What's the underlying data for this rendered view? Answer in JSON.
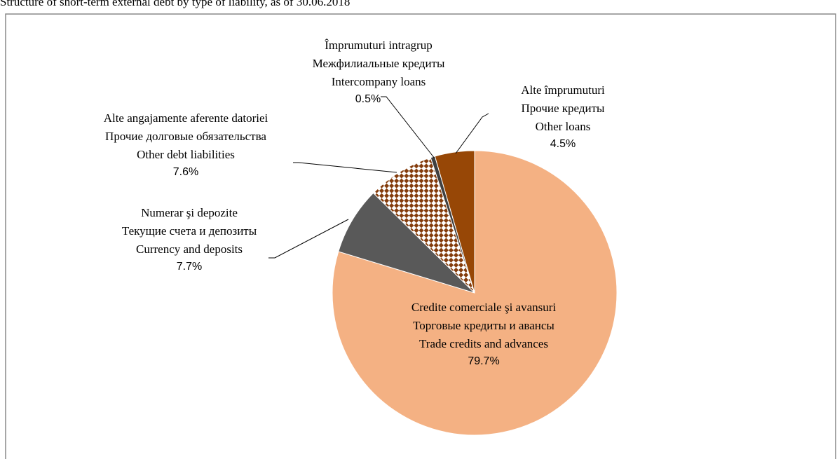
{
  "chart_data": {
    "type": "pie",
    "title": "Structure of short-term external debt by type of liability, as of 30.06.2018",
    "labels": [
      [
        "Credite comerciale şi avansuri",
        "Торговые кредиты и авансы",
        "Trade credits and advances"
      ],
      [
        "Numerar şi depozite",
        "Текущие счета и депозиты",
        "Currency and deposits"
      ],
      [
        "Alte angajamente aferente datoriei",
        "Прочие долговые обязательства",
        "Other debt liabilities"
      ],
      [
        "Împrumuturi intragrup",
        "Межфилиальные кредиты",
        "Intercompany loans"
      ],
      [
        "Alte împrumuturi",
        "Прочие кредиты",
        "Other loans"
      ]
    ],
    "values": [
      79.7,
      7.7,
      7.6,
      0.5,
      4.5
    ],
    "value_labels": [
      "79.7%",
      "7.7%",
      "7.6%",
      "0.5%",
      "4.5%"
    ],
    "colors": [
      "#F4B183",
      "#595959",
      "#843C0C",
      "#404040",
      "#974706"
    ],
    "patterns": [
      null,
      null,
      "checker",
      null,
      null
    ]
  }
}
